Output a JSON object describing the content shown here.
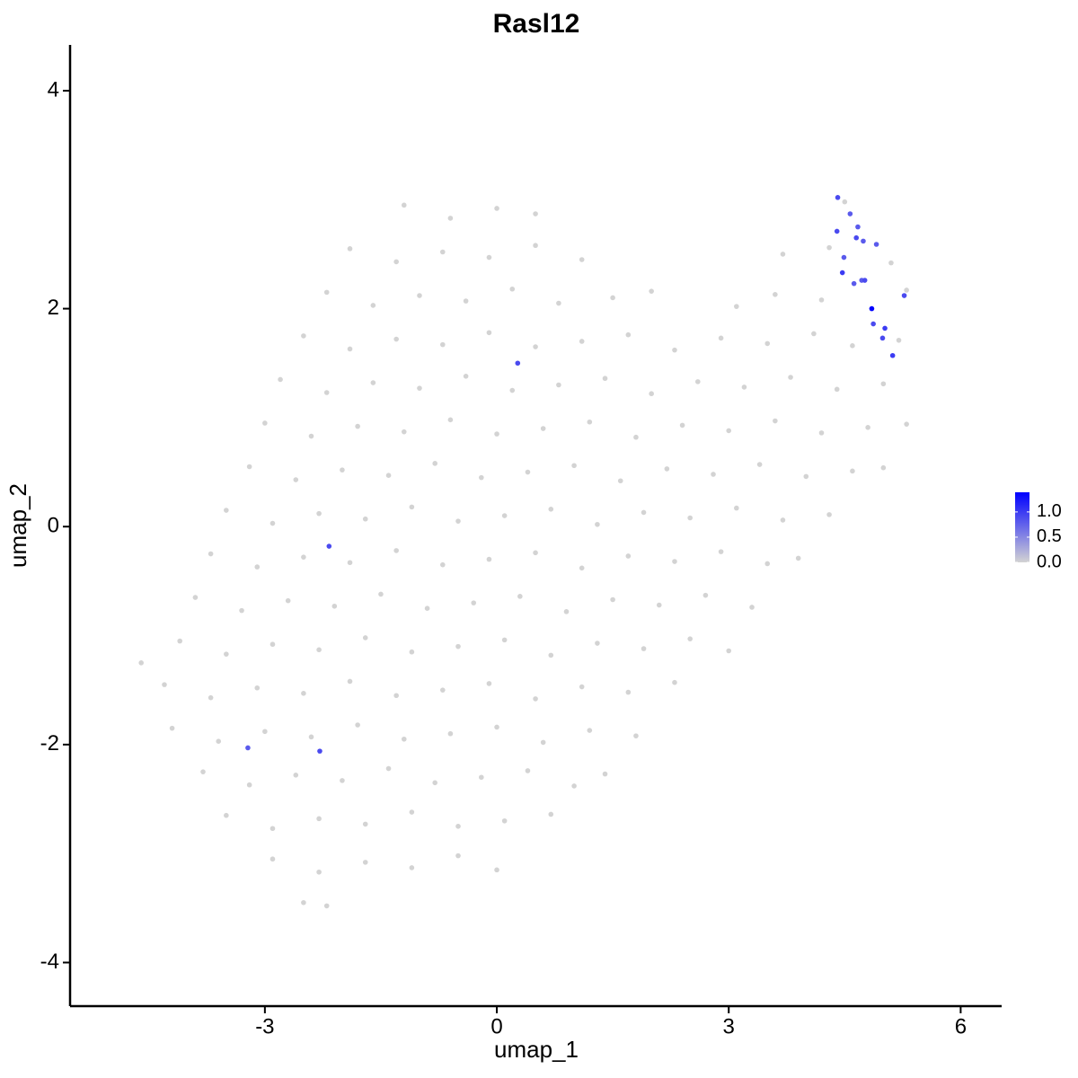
{
  "chart_data": {
    "type": "scatter",
    "title": "Rasl12",
    "x_label": "umap_1",
    "y_label": "umap_2",
    "xlim": [
      -5.52,
      6.53
    ],
    "ylim": [
      -4.4,
      4.42
    ],
    "xticks": [
      -3,
      0,
      3,
      6
    ],
    "yticks": [
      -4,
      -2,
      0,
      2,
      4
    ],
    "grid": false,
    "low_color": "#d3d3d3",
    "high_color": "#0000ff",
    "colorbar": {
      "lim": [
        0,
        1.39
      ],
      "ticks": [
        {
          "value": 0,
          "label": "0.0"
        },
        {
          "value": 0.5,
          "label": "0.5"
        },
        {
          "value": 1,
          "label": "1.0"
        }
      ]
    },
    "x": [
      -1.2,
      -0.6,
      0.0,
      0.5,
      4.5,
      -1.9,
      -1.3,
      -0.7,
      -0.1,
      0.5,
      1.1,
      3.7,
      4.3,
      5.1,
      -2.2,
      -1.6,
      -1.0,
      -0.4,
      0.2,
      0.8,
      1.5,
      2.0,
      3.1,
      3.6,
      4.2,
      5.3,
      -2.5,
      -1.9,
      -1.3,
      -0.7,
      -0.1,
      0.5,
      1.1,
      1.7,
      2.3,
      2.9,
      3.5,
      4.1,
      4.6,
      5.2,
      -2.8,
      -2.2,
      -1.6,
      -1.0,
      -0.4,
      0.2,
      0.8,
      1.4,
      2.0,
      2.6,
      3.2,
      3.8,
      4.4,
      5.0,
      -3.0,
      -2.4,
      -1.8,
      -1.2,
      -0.6,
      0.0,
      0.6,
      1.2,
      1.8,
      2.4,
      3.0,
      3.6,
      4.2,
      4.8,
      5.3,
      -3.2,
      -2.6,
      -2.0,
      -1.4,
      -0.8,
      -0.2,
      0.4,
      1.0,
      1.6,
      2.2,
      2.8,
      3.4,
      4.0,
      4.6,
      5.0,
      -3.5,
      -2.9,
      -2.3,
      -1.7,
      -1.1,
      -0.5,
      0.1,
      0.7,
      1.3,
      1.9,
      2.5,
      3.1,
      3.7,
      4.3,
      -3.7,
      -3.1,
      -2.5,
      -1.9,
      -1.3,
      -0.7,
      -0.1,
      0.5,
      1.1,
      1.7,
      2.3,
      2.9,
      3.5,
      3.9,
      -3.9,
      -3.3,
      -2.7,
      -2.1,
      -1.5,
      -0.9,
      -0.3,
      0.3,
      0.9,
      1.5,
      2.1,
      2.7,
      3.3,
      -4.6,
      -4.1,
      -3.5,
      -2.9,
      -2.3,
      -1.7,
      -1.1,
      -0.5,
      0.1,
      0.7,
      1.3,
      1.9,
      2.5,
      3.0,
      -4.3,
      -3.7,
      -3.1,
      -2.5,
      -1.9,
      -1.3,
      -0.7,
      -0.1,
      0.5,
      1.1,
      1.7,
      2.3,
      -4.2,
      -3.6,
      -3.0,
      -2.4,
      -1.8,
      -1.2,
      -0.6,
      0.0,
      0.6,
      1.2,
      1.8,
      -3.8,
      -3.2,
      -2.6,
      -2.0,
      -1.4,
      -0.8,
      -0.2,
      0.4,
      1.0,
      1.4,
      -3.5,
      -2.9,
      -2.3,
      -1.7,
      -1.1,
      -0.5,
      0.1,
      0.7,
      -2.9,
      -2.3,
      -1.7,
      -1.1,
      -0.5,
      0.0,
      -2.5,
      -2.2,
      4.41,
      4.57,
      4.4,
      4.67,
      4.65,
      4.74,
      4.91,
      4.49,
      4.47,
      4.62,
      4.72,
      4.76,
      5.27,
      4.85,
      4.87,
      5.02,
      4.99,
      5.12,
      0.27,
      -2.17,
      -3.22,
      -2.29
    ],
    "y": [
      2.95,
      2.83,
      2.92,
      2.87,
      2.98,
      2.55,
      2.43,
      2.52,
      2.47,
      2.58,
      2.45,
      2.5,
      2.56,
      2.42,
      2.15,
      2.03,
      2.12,
      2.07,
      2.18,
      2.05,
      2.1,
      2.16,
      2.02,
      2.13,
      2.08,
      2.17,
      1.75,
      1.63,
      1.72,
      1.67,
      1.78,
      1.65,
      1.7,
      1.76,
      1.62,
      1.73,
      1.68,
      1.77,
      1.66,
      1.71,
      1.35,
      1.23,
      1.32,
      1.27,
      1.38,
      1.25,
      1.3,
      1.36,
      1.22,
      1.33,
      1.28,
      1.37,
      1.26,
      1.31,
      0.95,
      0.83,
      0.92,
      0.87,
      0.98,
      0.85,
      0.9,
      0.96,
      0.82,
      0.93,
      0.88,
      0.97,
      0.86,
      0.91,
      0.94,
      0.55,
      0.43,
      0.52,
      0.47,
      0.58,
      0.45,
      0.5,
      0.56,
      0.42,
      0.53,
      0.48,
      0.57,
      0.46,
      0.51,
      0.54,
      0.15,
      0.03,
      0.12,
      0.07,
      0.18,
      0.05,
      0.1,
      0.16,
      0.02,
      0.13,
      0.08,
      0.17,
      0.06,
      0.11,
      -0.25,
      -0.37,
      -0.28,
      -0.33,
      -0.22,
      -0.35,
      -0.3,
      -0.24,
      -0.38,
      -0.27,
      -0.32,
      -0.23,
      -0.34,
      -0.29,
      -0.65,
      -0.77,
      -0.68,
      -0.73,
      -0.62,
      -0.75,
      -0.7,
      -0.64,
      -0.78,
      -0.67,
      -0.72,
      -0.63,
      -0.74,
      -1.25,
      -1.05,
      -1.17,
      -1.08,
      -1.13,
      -1.02,
      -1.15,
      -1.1,
      -1.04,
      -1.18,
      -1.07,
      -1.12,
      -1.03,
      -1.14,
      -1.45,
      -1.57,
      -1.48,
      -1.53,
      -1.42,
      -1.55,
      -1.5,
      -1.44,
      -1.58,
      -1.47,
      -1.52,
      -1.43,
      -1.85,
      -1.97,
      -1.88,
      -1.93,
      -1.82,
      -1.95,
      -1.9,
      -1.84,
      -1.98,
      -1.87,
      -1.92,
      -2.25,
      -2.37,
      -2.28,
      -2.33,
      -2.22,
      -2.35,
      -2.3,
      -2.24,
      -2.38,
      -2.27,
      -2.65,
      -2.77,
      -2.68,
      -2.73,
      -2.62,
      -2.75,
      -2.7,
      -2.64,
      -3.05,
      -3.17,
      -3.08,
      -3.13,
      -3.02,
      -3.15,
      -3.45,
      -3.48,
      3.02,
      2.87,
      2.71,
      2.75,
      2.65,
      2.62,
      2.59,
      2.47,
      2.33,
      2.23,
      2.26,
      2.26,
      2.12,
      2.0,
      1.86,
      1.82,
      1.73,
      1.57,
      1.5,
      -0.18,
      -2.03,
      -2.06
    ],
    "values": [
      0,
      0,
      0,
      0,
      0,
      0,
      0,
      0,
      0,
      0,
      0,
      0,
      0,
      0,
      0,
      0,
      0,
      0,
      0,
      0,
      0,
      0,
      0,
      0,
      0,
      0,
      0,
      0,
      0,
      0,
      0,
      0,
      0,
      0,
      0,
      0,
      0,
      0,
      0,
      0,
      0,
      0,
      0,
      0,
      0,
      0,
      0,
      0,
      0,
      0,
      0,
      0,
      0,
      0,
      0,
      0,
      0,
      0,
      0,
      0,
      0,
      0,
      0,
      0,
      0,
      0,
      0,
      0,
      0,
      0,
      0,
      0,
      0,
      0,
      0,
      0,
      0,
      0,
      0,
      0,
      0,
      0,
      0,
      0,
      0,
      0,
      0,
      0,
      0,
      0,
      0,
      0,
      0,
      0,
      0,
      0,
      0,
      0,
      0,
      0,
      0,
      0,
      0,
      0,
      0,
      0,
      0,
      0,
      0,
      0,
      0,
      0,
      0,
      0,
      0,
      0,
      0,
      0,
      0,
      0,
      0,
      0,
      0,
      0,
      0,
      0,
      0,
      0,
      0,
      0,
      0,
      0,
      0,
      0,
      0,
      0,
      0,
      0,
      0,
      0,
      0,
      0,
      0,
      0,
      0,
      0,
      0,
      0,
      0,
      0,
      0,
      0,
      0,
      0,
      0,
      0,
      0,
      0,
      0,
      0,
      0,
      0,
      0,
      0,
      0,
      0,
      0,
      0,
      0,
      0,
      0,
      0,
      0,
      0,
      0,
      0,
      0,
      0,
      0,
      0,
      0,
      0,
      0,
      0,
      0,
      0,
      0,
      0,
      0.9,
      0.8,
      0.9,
      0.8,
      0.9,
      0.8,
      0.8,
      0.8,
      1.0,
      0.8,
      0.8,
      0.9,
      0.9,
      1.39,
      0.9,
      1.0,
      0.9,
      1.0,
      0.9,
      0.9,
      0.8,
      0.9
    ]
  }
}
